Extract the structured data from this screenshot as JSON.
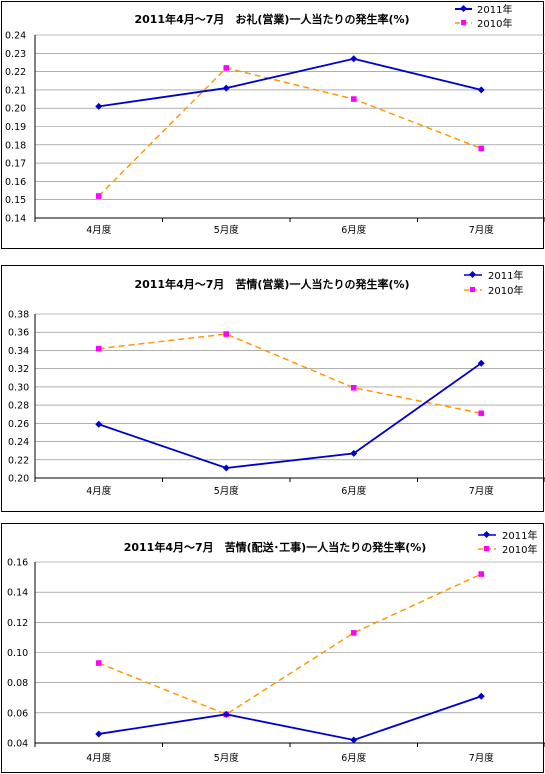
{
  "chart_data": [
    {
      "type": "line",
      "title": "2011年4月～7月　お礼(営業)一人当たりの発生率(%)",
      "categories": [
        "4月度",
        "5月度",
        "6月度",
        "7月度"
      ],
      "series": [
        {
          "name": "2011年",
          "values": [
            0.201,
            0.211,
            0.227,
            0.21
          ],
          "color": "#0000cc",
          "marker": "diamond",
          "dash": "solid"
        },
        {
          "name": "2010年",
          "values": [
            0.152,
            0.222,
            0.205,
            0.178
          ],
          "color": "#ff00ff",
          "line_color": "#ff9900",
          "marker": "square",
          "dash": "dashed"
        }
      ],
      "ylim": [
        0.14,
        0.24
      ],
      "yticks": [
        "0.24",
        "0.23",
        "0.22",
        "0.21",
        "0.20",
        "0.19",
        "0.18",
        "0.17",
        "0.16",
        "0.15",
        "0.14"
      ],
      "grid": true,
      "legend": "top-right"
    },
    {
      "type": "line",
      "title": "2011年4月～7月　苦情(営業)一人当たりの発生率(%)",
      "categories": [
        "4月度",
        "5月度",
        "6月度",
        "7月度"
      ],
      "series": [
        {
          "name": "2011年",
          "values": [
            0.259,
            0.211,
            0.227,
            0.326
          ],
          "color": "#0000cc",
          "marker": "diamond",
          "dash": "solid"
        },
        {
          "name": "2010年",
          "values": [
            0.342,
            0.358,
            0.299,
            0.271
          ],
          "color": "#ff00ff",
          "line_color": "#ff9900",
          "marker": "square",
          "dash": "dashed"
        }
      ],
      "ylim": [
        0.2,
        0.38
      ],
      "yticks": [
        "0.38",
        "0.36",
        "0.34",
        "0.32",
        "0.30",
        "0.28",
        "0.26",
        "0.24",
        "0.22",
        "0.20"
      ],
      "grid": true,
      "legend": "top-right"
    },
    {
      "type": "line",
      "title": "2011年4月～7月　苦情(配送･工事)一人当たりの発生率(%)",
      "categories": [
        "4月度",
        "5月度",
        "6月度",
        "7月度"
      ],
      "series": [
        {
          "name": "2011年",
          "values": [
            0.046,
            0.059,
            0.042,
            0.071
          ],
          "color": "#0000cc",
          "marker": "diamond",
          "dash": "solid"
        },
        {
          "name": "2010年",
          "values": [
            0.093,
            0.059,
            0.113,
            0.152
          ],
          "color": "#ff00ff",
          "line_color": "#ff9900",
          "marker": "square",
          "dash": "dashed"
        }
      ],
      "ylim": [
        0.04,
        0.16
      ],
      "yticks": [
        "0.16",
        "0.14",
        "0.12",
        "0.10",
        "0.08",
        "0.06",
        "0.04"
      ],
      "grid": true,
      "legend": "top-right"
    }
  ]
}
